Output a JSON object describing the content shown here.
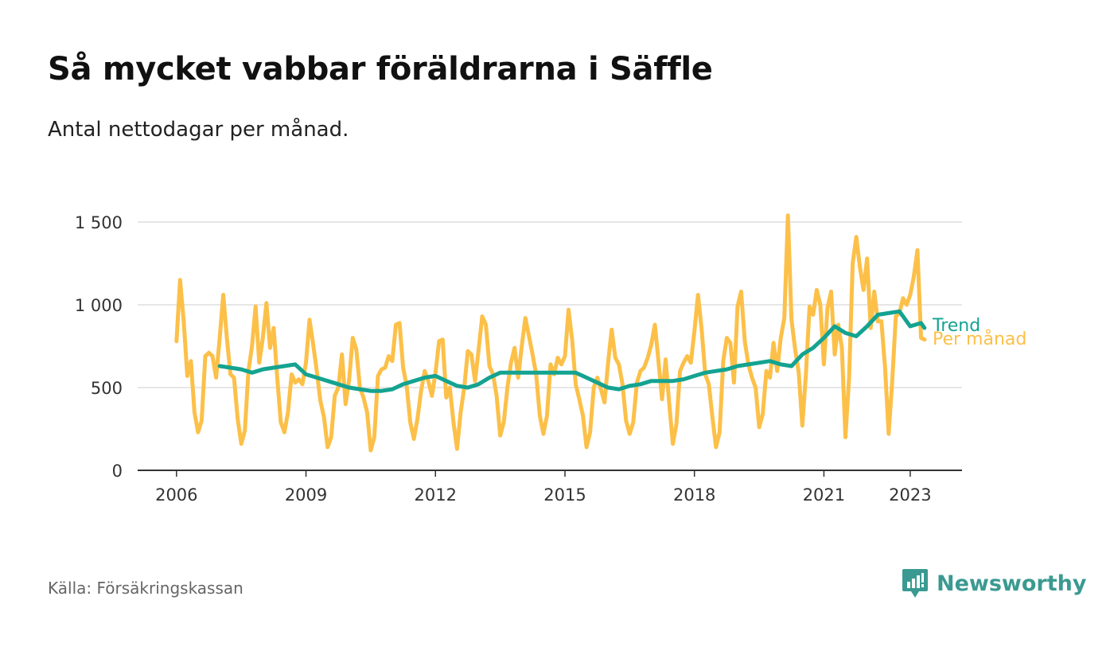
{
  "title": "Så mycket vabbar föräldrarna i Säffle",
  "subtitle": "Antal nettodagar per månad.",
  "source": "Källa: Försäkringskassan",
  "brand": "Newsworthy",
  "colors": {
    "monthly": "#fcc049",
    "trend": "#14a391",
    "grid": "#dddddd",
    "axis": "#333333",
    "brand": "#3a9a91"
  },
  "chart_data": {
    "type": "line",
    "title": "Så mycket vabbar föräldrarna i Säffle",
    "subtitle": "Antal nettodagar per månad.",
    "xlabel": "",
    "ylabel": "",
    "ylim": [
      0,
      1500
    ],
    "yticks": [
      0,
      500,
      1000,
      1500
    ],
    "ytick_labels": [
      "0",
      "500",
      "1 000",
      "1 500"
    ],
    "xlim": [
      2005.1,
      2024.2
    ],
    "xticks": [
      2006,
      2009,
      2012,
      2015,
      2018,
      2021,
      2023
    ],
    "xtick_labels": [
      "2006",
      "2009",
      "2012",
      "2015",
      "2018",
      "2021",
      "2023"
    ],
    "grid": true,
    "series": [
      {
        "name": "Per månad",
        "color": "#fcc049",
        "x": [
          2006.0,
          2006.083,
          2006.167,
          2006.25,
          2006.333,
          2006.417,
          2006.5,
          2006.583,
          2006.667,
          2006.75,
          2006.833,
          2006.917,
          2007.0,
          2007.083,
          2007.167,
          2007.25,
          2007.333,
          2007.417,
          2007.5,
          2007.583,
          2007.667,
          2007.75,
          2007.833,
          2007.917,
          2008.0,
          2008.083,
          2008.167,
          2008.25,
          2008.333,
          2008.417,
          2008.5,
          2008.583,
          2008.667,
          2008.75,
          2008.833,
          2008.917,
          2009.0,
          2009.083,
          2009.167,
          2009.25,
          2009.333,
          2009.417,
          2009.5,
          2009.583,
          2009.667,
          2009.75,
          2009.833,
          2009.917,
          2010.0,
          2010.083,
          2010.167,
          2010.25,
          2010.333,
          2010.417,
          2010.5,
          2010.583,
          2010.667,
          2010.75,
          2010.833,
          2010.917,
          2011.0,
          2011.083,
          2011.167,
          2011.25,
          2011.333,
          2011.417,
          2011.5,
          2011.583,
          2011.667,
          2011.75,
          2011.833,
          2011.917,
          2012.0,
          2012.083,
          2012.167,
          2012.25,
          2012.333,
          2012.417,
          2012.5,
          2012.583,
          2012.667,
          2012.75,
          2012.833,
          2012.917,
          2013.0,
          2013.083,
          2013.167,
          2013.25,
          2013.333,
          2013.417,
          2013.5,
          2013.583,
          2013.667,
          2013.75,
          2013.833,
          2013.917,
          2014.0,
          2014.083,
          2014.167,
          2014.25,
          2014.333,
          2014.417,
          2014.5,
          2014.583,
          2014.667,
          2014.75,
          2014.833,
          2014.917,
          2015.0,
          2015.083,
          2015.167,
          2015.25,
          2015.333,
          2015.417,
          2015.5,
          2015.583,
          2015.667,
          2015.75,
          2015.833,
          2015.917,
          2016.0,
          2016.083,
          2016.167,
          2016.25,
          2016.333,
          2016.417,
          2016.5,
          2016.583,
          2016.667,
          2016.75,
          2016.833,
          2016.917,
          2017.0,
          2017.083,
          2017.167,
          2017.25,
          2017.333,
          2017.417,
          2017.5,
          2017.583,
          2017.667,
          2017.75,
          2017.833,
          2017.917,
          2018.0,
          2018.083,
          2018.167,
          2018.25,
          2018.333,
          2018.417,
          2018.5,
          2018.583,
          2018.667,
          2018.75,
          2018.833,
          2018.917,
          2019.0,
          2019.083,
          2019.167,
          2019.25,
          2019.333,
          2019.417,
          2019.5,
          2019.583,
          2019.667,
          2019.75,
          2019.833,
          2019.917,
          2020.0,
          2020.083,
          2020.167,
          2020.25,
          2020.333,
          2020.417,
          2020.5,
          2020.583,
          2020.667,
          2020.75,
          2020.833,
          2020.917,
          2021.0,
          2021.083,
          2021.167,
          2021.25,
          2021.333,
          2021.417,
          2021.5,
          2021.583,
          2021.667,
          2021.75,
          2021.833,
          2021.917,
          2022.0,
          2022.083,
          2022.167,
          2022.25,
          2022.333,
          2022.417,
          2022.5,
          2022.583,
          2022.667,
          2022.75,
          2022.833,
          2022.917,
          2023.0,
          2023.083,
          2023.167,
          2023.25,
          2023.333
        ],
        "values": [
          780,
          1150,
          900,
          570,
          660,
          350,
          230,
          300,
          690,
          710,
          690,
          560,
          800,
          1060,
          800,
          580,
          560,
          310,
          160,
          240,
          600,
          750,
          990,
          650,
          800,
          1010,
          740,
          860,
          560,
          290,
          230,
          350,
          580,
          530,
          550,
          520,
          650,
          910,
          760,
          600,
          420,
          320,
          140,
          200,
          450,
          500,
          700,
          400,
          550,
          800,
          730,
          500,
          440,
          350,
          120,
          200,
          570,
          610,
          620,
          690,
          660,
          880,
          890,
          620,
          510,
          290,
          190,
          310,
          480,
          600,
          540,
          450,
          590,
          780,
          790,
          440,
          500,
          290,
          130,
          350,
          500,
          720,
          700,
          540,
          730,
          930,
          880,
          630,
          580,
          450,
          210,
          290,
          500,
          650,
          740,
          560,
          750,
          920,
          810,
          700,
          580,
          330,
          220,
          330,
          640,
          580,
          680,
          640,
          690,
          970,
          790,
          520,
          430,
          330,
          140,
          230,
          500,
          560,
          490,
          410,
          650,
          850,
          680,
          640,
          520,
          300,
          220,
          290,
          530,
          600,
          620,
          680,
          760,
          880,
          660,
          430,
          670,
          400,
          160,
          280,
          600,
          650,
          690,
          650,
          840,
          1060,
          850,
          580,
          520,
          320,
          140,
          230,
          660,
          800,
          770,
          530,
          990,
          1080,
          780,
          640,
          560,
          500,
          260,
          340,
          600,
          560,
          770,
          600,
          800,
          920,
          1540,
          910,
          730,
          590,
          270,
          580,
          990,
          940,
          1090,
          1000,
          640,
          980,
          1080,
          700,
          880,
          740,
          200,
          560,
          1250,
          1410,
          1230,
          1090,
          1280,
          860,
          1080,
          900,
          900,
          620,
          220,
          540,
          930,
          950,
          1040,
          1000,
          1060,
          1170,
          1330,
          800,
          790
        ]
      },
      {
        "name": "Trend",
        "color": "#14a391",
        "x": [
          2007.0,
          2007.25,
          2007.5,
          2007.75,
          2008.0,
          2008.25,
          2008.5,
          2008.75,
          2009.0,
          2009.25,
          2009.5,
          2009.75,
          2010.0,
          2010.25,
          2010.5,
          2010.75,
          2011.0,
          2011.25,
          2011.5,
          2011.75,
          2012.0,
          2012.25,
          2012.5,
          2012.75,
          2013.0,
          2013.25,
          2013.5,
          2013.75,
          2014.0,
          2014.25,
          2014.5,
          2014.75,
          2015.0,
          2015.25,
          2015.5,
          2015.75,
          2016.0,
          2016.25,
          2016.5,
          2016.75,
          2017.0,
          2017.25,
          2017.5,
          2017.75,
          2018.0,
          2018.25,
          2018.5,
          2018.75,
          2019.0,
          2019.25,
          2019.5,
          2019.75,
          2020.0,
          2020.25,
          2020.5,
          2020.75,
          2021.0,
          2021.25,
          2021.5,
          2021.75,
          2022.0,
          2022.25,
          2022.5,
          2022.75,
          2023.0,
          2023.25,
          2023.33
        ],
        "values": [
          630,
          620,
          610,
          590,
          610,
          620,
          630,
          640,
          580,
          560,
          540,
          520,
          500,
          490,
          480,
          480,
          490,
          520,
          540,
          560,
          570,
          540,
          510,
          500,
          520,
          560,
          590,
          590,
          590,
          590,
          590,
          590,
          590,
          590,
          560,
          530,
          500,
          490,
          510,
          520,
          540,
          540,
          540,
          550,
          570,
          590,
          600,
          610,
          630,
          640,
          650,
          660,
          640,
          630,
          700,
          740,
          800,
          870,
          830,
          810,
          870,
          940,
          950,
          960,
          870,
          890,
          860
        ]
      }
    ],
    "series_labels": [
      {
        "name": "Trend",
        "label": "Trend",
        "color": "#14a391"
      },
      {
        "name": "Per månad",
        "label": "Per månad",
        "color": "#fcc049"
      }
    ]
  }
}
